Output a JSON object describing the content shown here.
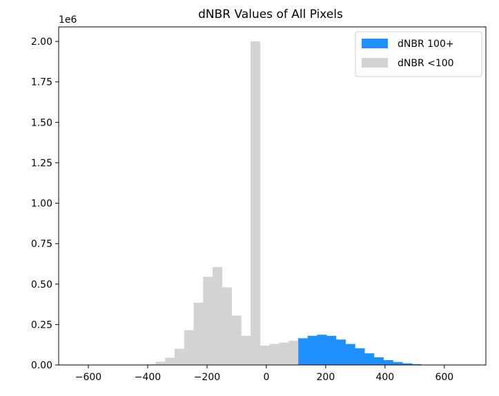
{
  "chart_data": {
    "type": "bar",
    "title": "dNBR Values of All Pixels",
    "offset_label": "1e6",
    "xlabel": "",
    "ylabel": "",
    "xlim": [
      -700,
      740
    ],
    "ylim": [
      0,
      2.09
    ],
    "x_ticks": [
      -600,
      -400,
      -200,
      0,
      200,
      400,
      600
    ],
    "x_tick_labels": [
      "−600",
      "−400",
      "−200",
      "0",
      "200",
      "400",
      "600"
    ],
    "y_ticks": [
      0,
      0.25,
      0.5,
      0.75,
      1.0,
      1.25,
      1.5,
      1.75,
      2.0
    ],
    "y_tick_labels": [
      "0.00",
      "0.25",
      "0.50",
      "0.75",
      "1.00",
      "1.25",
      "1.50",
      "1.75",
      "2.00"
    ],
    "bin_width": 32,
    "grid": false,
    "legend_position": "top-right",
    "series": [
      {
        "name": "dNBR 100+",
        "color": "#1e90ff",
        "bins": [
          {
            "x0": 107,
            "value": 0.165
          },
          {
            "x0": 139,
            "value": 0.18
          },
          {
            "x0": 171,
            "value": 0.187
          },
          {
            "x0": 203,
            "value": 0.18
          },
          {
            "x0": 235,
            "value": 0.157
          },
          {
            "x0": 267,
            "value": 0.13
          },
          {
            "x0": 299,
            "value": 0.103
          },
          {
            "x0": 331,
            "value": 0.072
          },
          {
            "x0": 363,
            "value": 0.047
          },
          {
            "x0": 395,
            "value": 0.03
          },
          {
            "x0": 427,
            "value": 0.018
          },
          {
            "x0": 459,
            "value": 0.01
          },
          {
            "x0": 491,
            "value": 0.005
          },
          {
            "x0": 523,
            "value": 0.002
          },
          {
            "x0": 555,
            "value": 0.001
          }
        ]
      },
      {
        "name": "dNBR <100",
        "color": "#d3d3d3",
        "bins": [
          {
            "x0": -437,
            "value": 0.002
          },
          {
            "x0": -405,
            "value": 0.005
          },
          {
            "x0": -373,
            "value": 0.02
          },
          {
            "x0": -341,
            "value": 0.045
          },
          {
            "x0": -309,
            "value": 0.1
          },
          {
            "x0": -277,
            "value": 0.215
          },
          {
            "x0": -245,
            "value": 0.385
          },
          {
            "x0": -213,
            "value": 0.545
          },
          {
            "x0": -181,
            "value": 0.605
          },
          {
            "x0": -149,
            "value": 0.48
          },
          {
            "x0": -117,
            "value": 0.305
          },
          {
            "x0": -85,
            "value": 0.18
          },
          {
            "x0": -53,
            "value": 2.0
          },
          {
            "x0": -21,
            "value": 0.12
          },
          {
            "x0": 11,
            "value": 0.13
          },
          {
            "x0": 43,
            "value": 0.138
          },
          {
            "x0": 75,
            "value": 0.15
          }
        ]
      }
    ]
  }
}
